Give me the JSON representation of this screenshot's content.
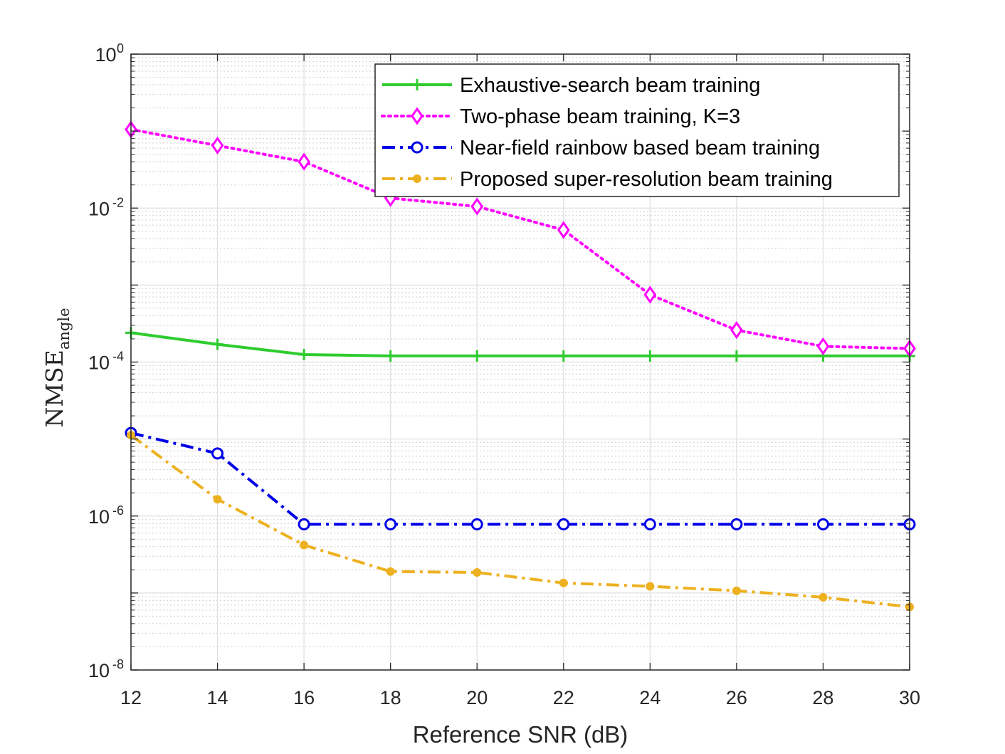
{
  "chart_data": {
    "type": "line",
    "xlabel": "Reference SNR (dB)",
    "ylabel": {
      "main": "NMSE",
      "sub": "angle"
    },
    "xlim": [
      12,
      30
    ],
    "ylim": [
      1e-08,
      1
    ],
    "yscale": "log",
    "grid": true,
    "minor_grid": true,
    "legend_position": "top-right",
    "x_ticks": [
      {
        "value": 12,
        "label": "12"
      },
      {
        "value": 14,
        "label": "14"
      },
      {
        "value": 16,
        "label": "16"
      },
      {
        "value": 18,
        "label": "18"
      },
      {
        "value": 20,
        "label": "20"
      },
      {
        "value": 22,
        "label": "22"
      },
      {
        "value": 24,
        "label": "24"
      },
      {
        "value": 26,
        "label": "26"
      },
      {
        "value": 28,
        "label": "28"
      },
      {
        "value": 30,
        "label": "30"
      }
    ],
    "y_ticks": [
      {
        "value": 1,
        "base": "10",
        "exp": "0"
      },
      {
        "value": 0.01,
        "base": "10",
        "exp": "-2"
      },
      {
        "value": 0.0001,
        "base": "10",
        "exp": "-4"
      },
      {
        "value": 1e-06,
        "base": "10",
        "exp": "-6"
      },
      {
        "value": 1e-08,
        "base": "10",
        "exp": "-8"
      }
    ],
    "x": [
      12,
      14,
      16,
      18,
      20,
      22,
      24,
      26,
      28,
      30
    ],
    "series": [
      {
        "name": "Exhaustive-search beam training",
        "color": "#2ecc2e",
        "line_style": "solid",
        "marker": "plus",
        "values": [
          0.00024,
          0.00017,
          0.000125,
          0.00012,
          0.00012,
          0.00012,
          0.00012,
          0.00012,
          0.00012,
          0.00012
        ]
      },
      {
        "name": "Two-phase beam training, K=3",
        "color": "#ff00ff",
        "line_style": "dotted",
        "marker": "diamond",
        "values": [
          0.105,
          0.065,
          0.04,
          0.0135,
          0.0105,
          0.0052,
          0.00075,
          0.00026,
          0.00016,
          0.00015
        ]
      },
      {
        "name": "Near-field rainbow based beam training",
        "color": "#0000e6",
        "line_style": "dashdot",
        "marker": "circle",
        "values": [
          1.2e-05,
          6.5e-06,
          7.8e-07,
          7.8e-07,
          7.8e-07,
          7.8e-07,
          7.8e-07,
          7.8e-07,
          7.8e-07,
          7.8e-07
        ]
      },
      {
        "name": "Proposed super-resolution beam training",
        "color": "#edb120",
        "line_style": "dashdot",
        "marker": "dot",
        "values": [
          1.12e-05,
          1.65e-06,
          4.2e-07,
          1.9e-07,
          1.85e-07,
          1.35e-07,
          1.22e-07,
          1.07e-07,
          8.8e-08,
          6.6e-08
        ]
      }
    ]
  }
}
